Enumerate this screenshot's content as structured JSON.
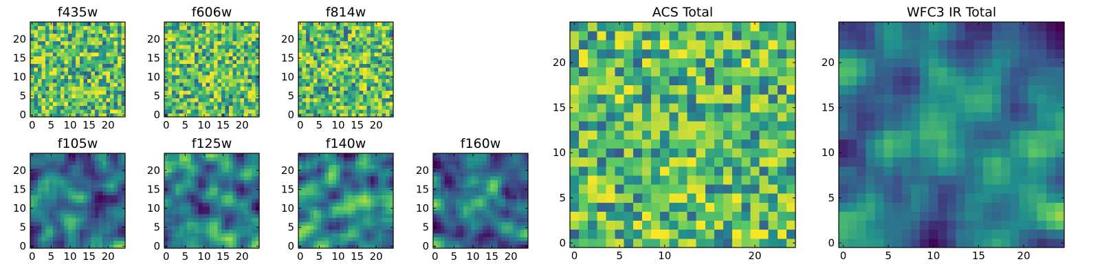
{
  "chart_data": [
    {
      "type": "heatmap",
      "title": "f435w",
      "xticks": [
        0,
        5,
        10,
        15,
        20
      ],
      "yticks": [
        0,
        5,
        10,
        15,
        20
      ],
      "xlim": [
        0,
        24
      ],
      "ylim": [
        0,
        24
      ],
      "grid": false,
      "texture": "fine-noise"
    },
    {
      "type": "heatmap",
      "title": "f606w",
      "xticks": [
        0,
        5,
        10,
        15,
        20
      ],
      "yticks": [
        0,
        5,
        10,
        15,
        20
      ],
      "xlim": [
        0,
        24
      ],
      "ylim": [
        0,
        24
      ],
      "grid": false,
      "texture": "fine-noise"
    },
    {
      "type": "heatmap",
      "title": "f814w",
      "xticks": [
        0,
        5,
        10,
        15,
        20
      ],
      "yticks": [
        0,
        5,
        10,
        15,
        20
      ],
      "xlim": [
        0,
        24
      ],
      "ylim": [
        0,
        24
      ],
      "grid": false,
      "texture": "fine-noise"
    },
    {
      "type": "heatmap",
      "title": "f105w",
      "xticks": [
        0,
        5,
        10,
        15,
        20
      ],
      "yticks": [
        0,
        5,
        10,
        15,
        20
      ],
      "xlim": [
        0,
        24
      ],
      "ylim": [
        0,
        24
      ],
      "grid": false,
      "texture": "smooth",
      "bright_spot": [
        13,
        13
      ]
    },
    {
      "type": "heatmap",
      "title": "f125w",
      "xticks": [
        0,
        5,
        10,
        15,
        20
      ],
      "yticks": [
        0,
        5,
        10,
        15,
        20
      ],
      "xlim": [
        0,
        24
      ],
      "ylim": [
        0,
        24
      ],
      "grid": false,
      "texture": "smooth",
      "bright_spot": [
        13,
        13
      ]
    },
    {
      "type": "heatmap",
      "title": "f140w",
      "xticks": [
        0,
        5,
        10,
        15,
        20
      ],
      "yticks": [
        0,
        5,
        10,
        15,
        20
      ],
      "xlim": [
        0,
        24
      ],
      "ylim": [
        0,
        24
      ],
      "grid": false,
      "texture": "smooth",
      "bright_spot": [
        13,
        13
      ]
    },
    {
      "type": "heatmap",
      "title": "f160w",
      "xticks": [
        0,
        5,
        10,
        15,
        20
      ],
      "yticks": [
        0,
        5,
        10,
        15,
        20
      ],
      "xlim": [
        0,
        24
      ],
      "ylim": [
        0,
        24
      ],
      "grid": false,
      "texture": "smooth",
      "bright_spot": [
        12,
        12
      ]
    },
    {
      "type": "heatmap",
      "title": "ACS Total",
      "xticks": [
        0,
        5,
        10,
        20
      ],
      "yticks": [
        0,
        5,
        10,
        15,
        20
      ],
      "xlim": [
        0,
        24
      ],
      "ylim": [
        0,
        24
      ],
      "grid": false,
      "texture": "fine-noise"
    },
    {
      "type": "heatmap",
      "title": "WFC3 IR Total",
      "xticks": [
        0,
        5,
        10,
        15,
        20
      ],
      "yticks": [
        0,
        5,
        10,
        15,
        20
      ],
      "xlim": [
        0,
        24
      ],
      "ylim": [
        0,
        24
      ],
      "grid": false,
      "texture": "smooth",
      "bright_spot": [
        12,
        12
      ]
    }
  ],
  "colormap": [
    "#440154",
    "#3b528b",
    "#21908d",
    "#5dc963",
    "#fde725"
  ]
}
